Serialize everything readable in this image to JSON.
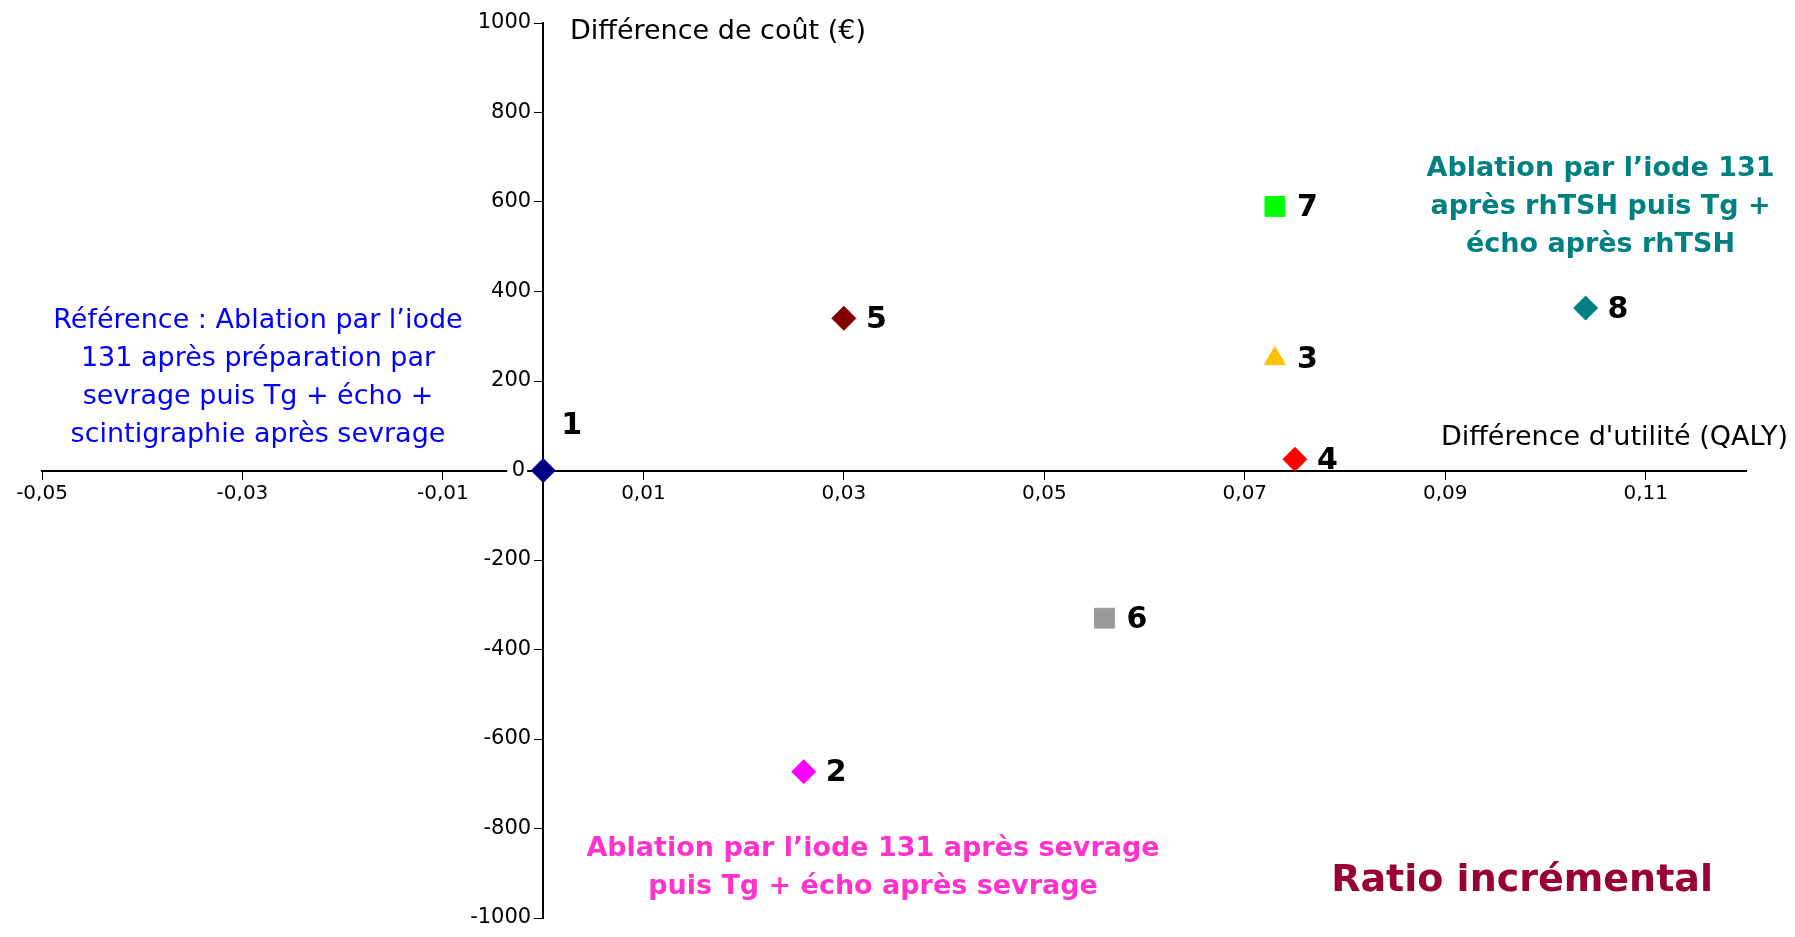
{
  "chart_data": {
    "type": "scatter",
    "title": "Ratio incrémental",
    "xlabel": "Différence d'utilité (QALY)",
    "ylabel": "Différence de coût (€)",
    "xlim": [
      -0.05,
      0.12
    ],
    "xticks": [
      {
        "value": -0.05,
        "label": "-0,05"
      },
      {
        "value": -0.03,
        "label": "-0,03"
      },
      {
        "value": -0.01,
        "label": "-0,01"
      },
      {
        "value": 0.01,
        "label": "0,01"
      },
      {
        "value": 0.03,
        "label": "0,03"
      },
      {
        "value": 0.05,
        "label": "0,05"
      },
      {
        "value": 0.07,
        "label": "0,07"
      },
      {
        "value": 0.09,
        "label": "0,09"
      },
      {
        "value": 0.11,
        "label": "0,11"
      }
    ],
    "ylim": [
      -1000,
      1000
    ],
    "yticks": [
      -1000,
      -800,
      -600,
      -400,
      -200,
      0,
      200,
      400,
      600,
      800,
      1000
    ],
    "grid": false,
    "legend": false,
    "series": [
      {
        "name": "1",
        "color": "#000080",
        "marker": "diamond",
        "x": [
          0
        ],
        "values": [
          0
        ]
      },
      {
        "name": "2",
        "color": "#ff00ff",
        "marker": "diamond",
        "x": [
          0.026
        ],
        "values": [
          -673
        ]
      },
      {
        "name": "3",
        "color": "#ffc000",
        "marker": "triangle",
        "x": [
          0.073
        ],
        "values": [
          250
        ]
      },
      {
        "name": "4",
        "color": "#ff0000",
        "marker": "diamond",
        "x": [
          0.075
        ],
        "values": [
          25
        ]
      },
      {
        "name": "5",
        "color": "#800000",
        "marker": "diamond",
        "x": [
          0.03
        ],
        "values": [
          340
        ]
      },
      {
        "name": "6",
        "color": "#999999",
        "marker": "square",
        "x": [
          0.056
        ],
        "values": [
          -330
        ]
      },
      {
        "name": "7",
        "color": "#00ff00",
        "marker": "square",
        "x": [
          0.073
        ],
        "values": [
          590
        ]
      },
      {
        "name": "8",
        "color": "#008080",
        "marker": "diamond",
        "x": [
          0.104
        ],
        "values": [
          363
        ]
      }
    ],
    "annotations": [
      "Référence : Ablation par l’iode 131 après préparation par sevrage puis Tg + écho + scintigraphie après sevrage",
      "Ablation par l’iode 131 après sevrage puis Tg + écho après sevrage",
      "Ablation par l’iode 131 après rhTSH puis Tg + écho après rhTSH"
    ]
  }
}
